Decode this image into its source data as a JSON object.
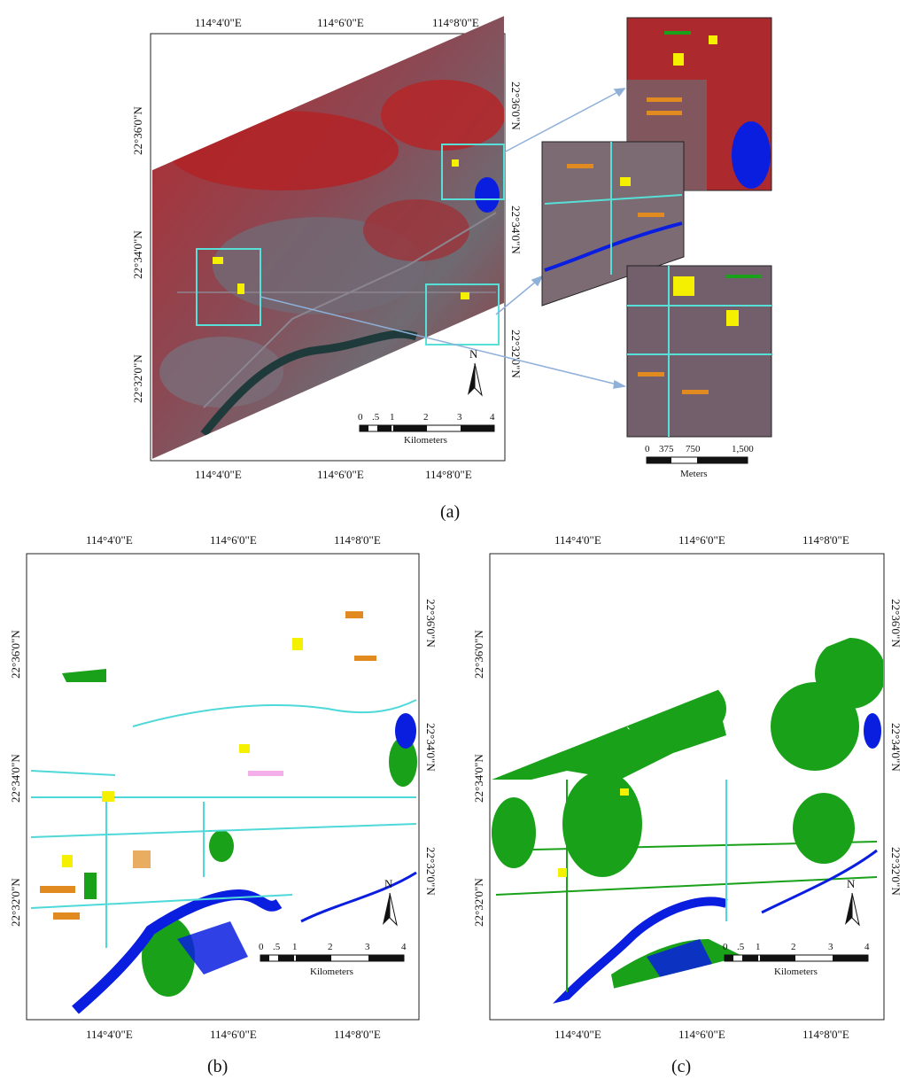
{
  "panels": [
    {
      "id": "a",
      "caption": "(a)",
      "lon_labels": [
        "114°4'0\"E",
        "114°6'0\"E",
        "114°8'0\"E"
      ],
      "lat_labels": [
        "22°36'0\"N",
        "22°34'0\"N",
        "22°32'0\"N"
      ],
      "north_label": "N",
      "scale": {
        "ticks": [
          "0",
          ".5",
          "1",
          "2",
          "3",
          "4"
        ],
        "unit": "Kilometers"
      },
      "inset_scale": {
        "ticks": [
          "0",
          "375",
          "750",
          "1,500"
        ],
        "unit": "Meters"
      }
    },
    {
      "id": "b",
      "caption": "(b)",
      "lon_labels": [
        "114°4'0\"E",
        "114°6'0\"E",
        "114°8'0\"E"
      ],
      "lat_labels": [
        "22°36'0\"N",
        "22°34'0\"N",
        "22°32'0\"N"
      ],
      "north_label": "N",
      "scale": {
        "ticks": [
          "0",
          ".5",
          "1",
          "2",
          "3",
          "4"
        ],
        "unit": "Kilometers"
      }
    },
    {
      "id": "c",
      "caption": "(c)",
      "lon_labels": [
        "114°4'0\"E",
        "114°6'0\"E",
        "114°8'0\"E"
      ],
      "lat_labels": [
        "22°36'0\"N",
        "22°34'0\"N",
        "22°32'0\"N"
      ],
      "north_label": "N",
      "scale": {
        "ticks": [
          "0",
          ".5",
          "1",
          "2",
          "3",
          "4"
        ],
        "unit": "Kilometers"
      }
    }
  ],
  "colors": {
    "false_color_vegetation": "#b8262b",
    "false_color_urban": "#6f6a72",
    "water": "#0a1ee0",
    "vegetation_class": "#1aa11a",
    "road_class": "#4fd8d8",
    "building_yellow": "#f5f000",
    "building_orange": "#e08a20",
    "building_pink": "#f08ce0",
    "inset_border": "#56e0d8",
    "arrow": "#8fb0d8"
  }
}
